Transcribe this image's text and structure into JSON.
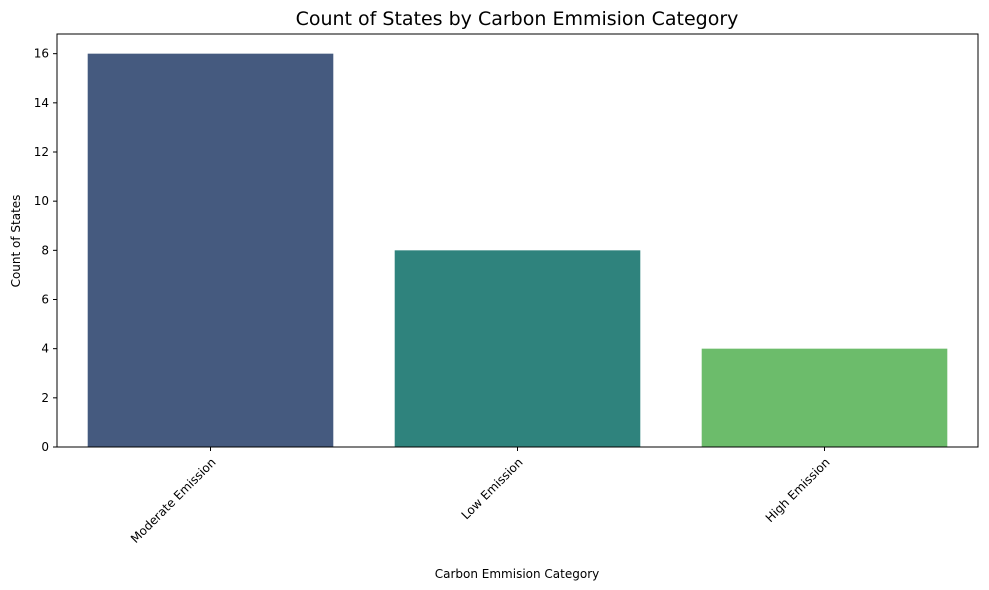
{
  "chart_data": {
    "type": "bar",
    "title": "Count of States by Carbon Emmision Category",
    "xlabel": "Carbon Emmision Category",
    "ylabel": "Count of States",
    "categories": [
      "Moderate Emission",
      "Low Emission",
      "High Emission"
    ],
    "values": [
      16,
      8,
      4
    ],
    "colors": [
      "#455a7f",
      "#2f837d",
      "#6cbc6b"
    ],
    "ylim": [
      0,
      16.8
    ],
    "yticks": [
      0,
      2,
      4,
      6,
      8,
      10,
      12,
      14,
      16
    ],
    "grid": false,
    "legend": "none",
    "xtick_rotation": 45
  }
}
